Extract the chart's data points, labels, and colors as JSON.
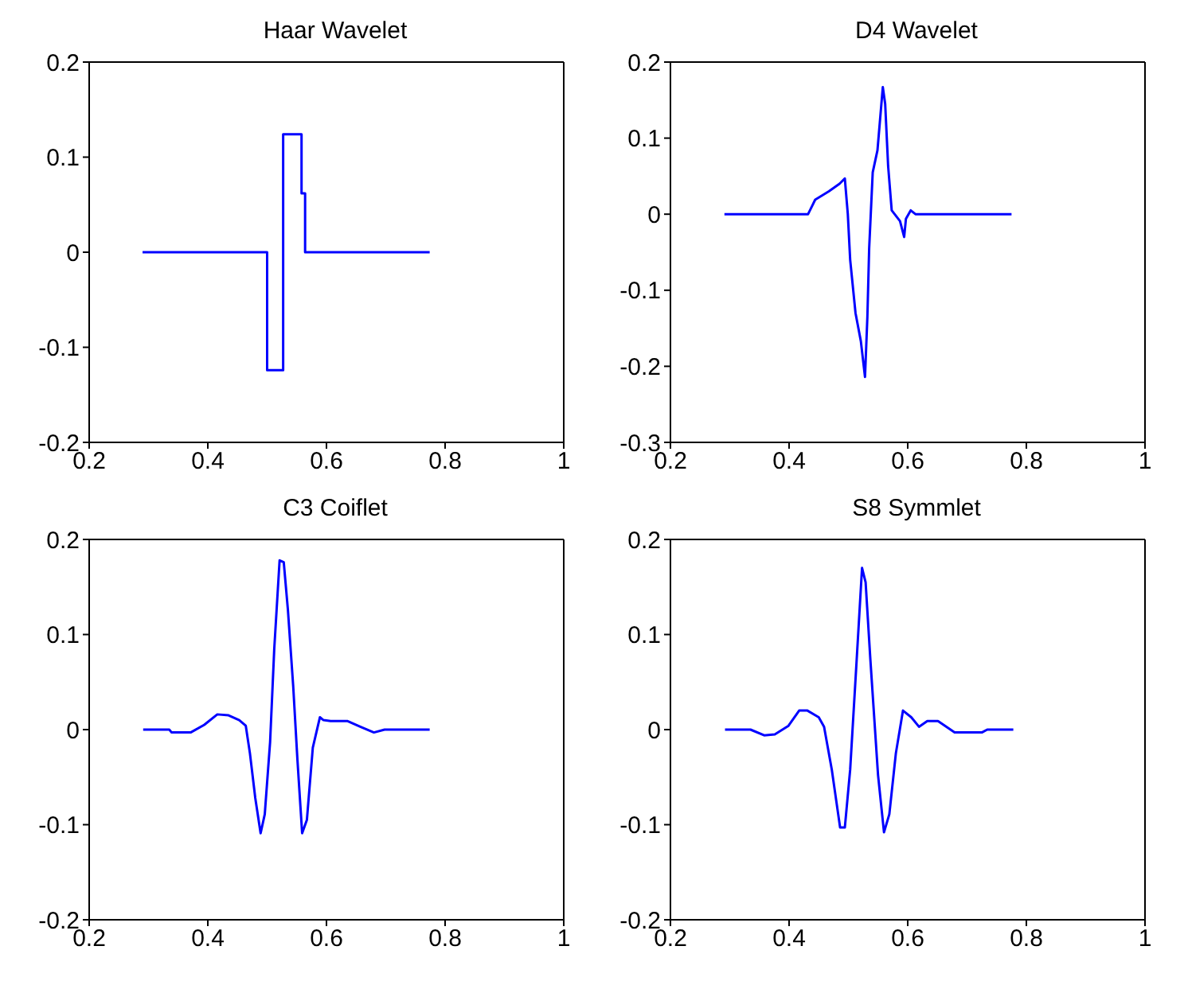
{
  "chart_data": [
    {
      "type": "line",
      "title": "Haar Wavelet",
      "color": "#0000ff",
      "xlim": [
        0.2,
        1
      ],
      "xticks": [
        0.2,
        0.4,
        0.6,
        0.8,
        1
      ],
      "ylim": [
        -0.2,
        0.2
      ],
      "yticks": [
        -0.2,
        -0.1,
        0,
        0.1,
        0.2
      ],
      "x": [
        0.29,
        0.5,
        0.5,
        0.527,
        0.527,
        0.558,
        0.558,
        0.564,
        0.564,
        0.774
      ],
      "values": [
        0,
        0,
        -0.124,
        -0.124,
        0.124,
        0.124,
        0.062,
        0.062,
        0,
        0
      ]
    },
    {
      "type": "line",
      "title": "D4 Wavelet",
      "color": "#0000ff",
      "xlim": [
        0.2,
        1
      ],
      "xticks": [
        0.2,
        0.4,
        0.6,
        0.8,
        1
      ],
      "ylim": [
        -0.3,
        0.2
      ],
      "yticks": [
        -0.3,
        -0.2,
        -0.1,
        0,
        0.1,
        0.2
      ],
      "x": [
        0.291,
        0.432,
        0.444,
        0.467,
        0.485,
        0.494,
        0.499,
        0.503,
        0.512,
        0.521,
        0.528,
        0.532,
        0.535,
        0.541,
        0.549,
        0.558,
        0.562,
        0.567,
        0.573,
        0.58,
        0.587,
        0.594,
        0.597,
        0.605,
        0.613,
        0.775
      ],
      "values": [
        0,
        0,
        0.019,
        0.03,
        0.04,
        0.047,
        0,
        -0.06,
        -0.13,
        -0.167,
        -0.214,
        -0.135,
        -0.045,
        0.055,
        0.084,
        0.167,
        0.145,
        0.063,
        0.005,
        -0.002,
        -0.009,
        -0.03,
        -0.006,
        0.005,
        0,
        0
      ]
    },
    {
      "type": "line",
      "title": "C3 Coiflet",
      "color": "#0000ff",
      "xlim": [
        0.2,
        1
      ],
      "xticks": [
        0.2,
        0.4,
        0.6,
        0.8,
        1
      ],
      "ylim": [
        -0.2,
        0.2
      ],
      "yticks": [
        -0.2,
        -0.1,
        0,
        0.1,
        0.2
      ],
      "x": [
        0.291,
        0.335,
        0.339,
        0.371,
        0.394,
        0.416,
        0.435,
        0.453,
        0.464,
        0.471,
        0.48,
        0.489,
        0.496,
        0.505,
        0.512,
        0.521,
        0.528,
        0.535,
        0.544,
        0.551,
        0.559,
        0.567,
        0.577,
        0.589,
        0.595,
        0.607,
        0.635,
        0.657,
        0.68,
        0.698,
        0.774
      ],
      "values": [
        0,
        0,
        -0.003,
        -0.003,
        0.005,
        0.016,
        0.015,
        0.01,
        0.004,
        -0.025,
        -0.072,
        -0.109,
        -0.089,
        -0.013,
        0.085,
        0.178,
        0.176,
        0.126,
        0.045,
        -0.031,
        -0.109,
        -0.095,
        -0.019,
        0.013,
        0.01,
        0.009,
        0.009,
        0.003,
        -0.003,
        0,
        0
      ]
    },
    {
      "type": "line",
      "title": "S8 Symmlet",
      "color": "#0000ff",
      "xlim": [
        0.2,
        1
      ],
      "xticks": [
        0.2,
        0.4,
        0.6,
        0.8,
        1
      ],
      "ylim": [
        -0.2,
        0.2
      ],
      "yticks": [
        -0.2,
        -0.1,
        0,
        0.1,
        0.2
      ],
      "x": [
        0.292,
        0.335,
        0.358,
        0.376,
        0.399,
        0.417,
        0.431,
        0.45,
        0.459,
        0.472,
        0.486,
        0.494,
        0.503,
        0.514,
        0.523,
        0.529,
        0.537,
        0.55,
        0.56,
        0.569,
        0.58,
        0.592,
        0.606,
        0.619,
        0.633,
        0.651,
        0.679,
        0.725,
        0.734,
        0.778
      ],
      "values": [
        0,
        0,
        -0.006,
        -0.005,
        0.004,
        0.02,
        0.02,
        0.013,
        0.003,
        -0.042,
        -0.103,
        -0.103,
        -0.042,
        0.074,
        0.17,
        0.155,
        0.074,
        -0.048,
        -0.108,
        -0.089,
        -0.025,
        0.02,
        0.013,
        0.003,
        0.009,
        0.009,
        -0.003,
        -0.003,
        0,
        0
      ]
    }
  ]
}
